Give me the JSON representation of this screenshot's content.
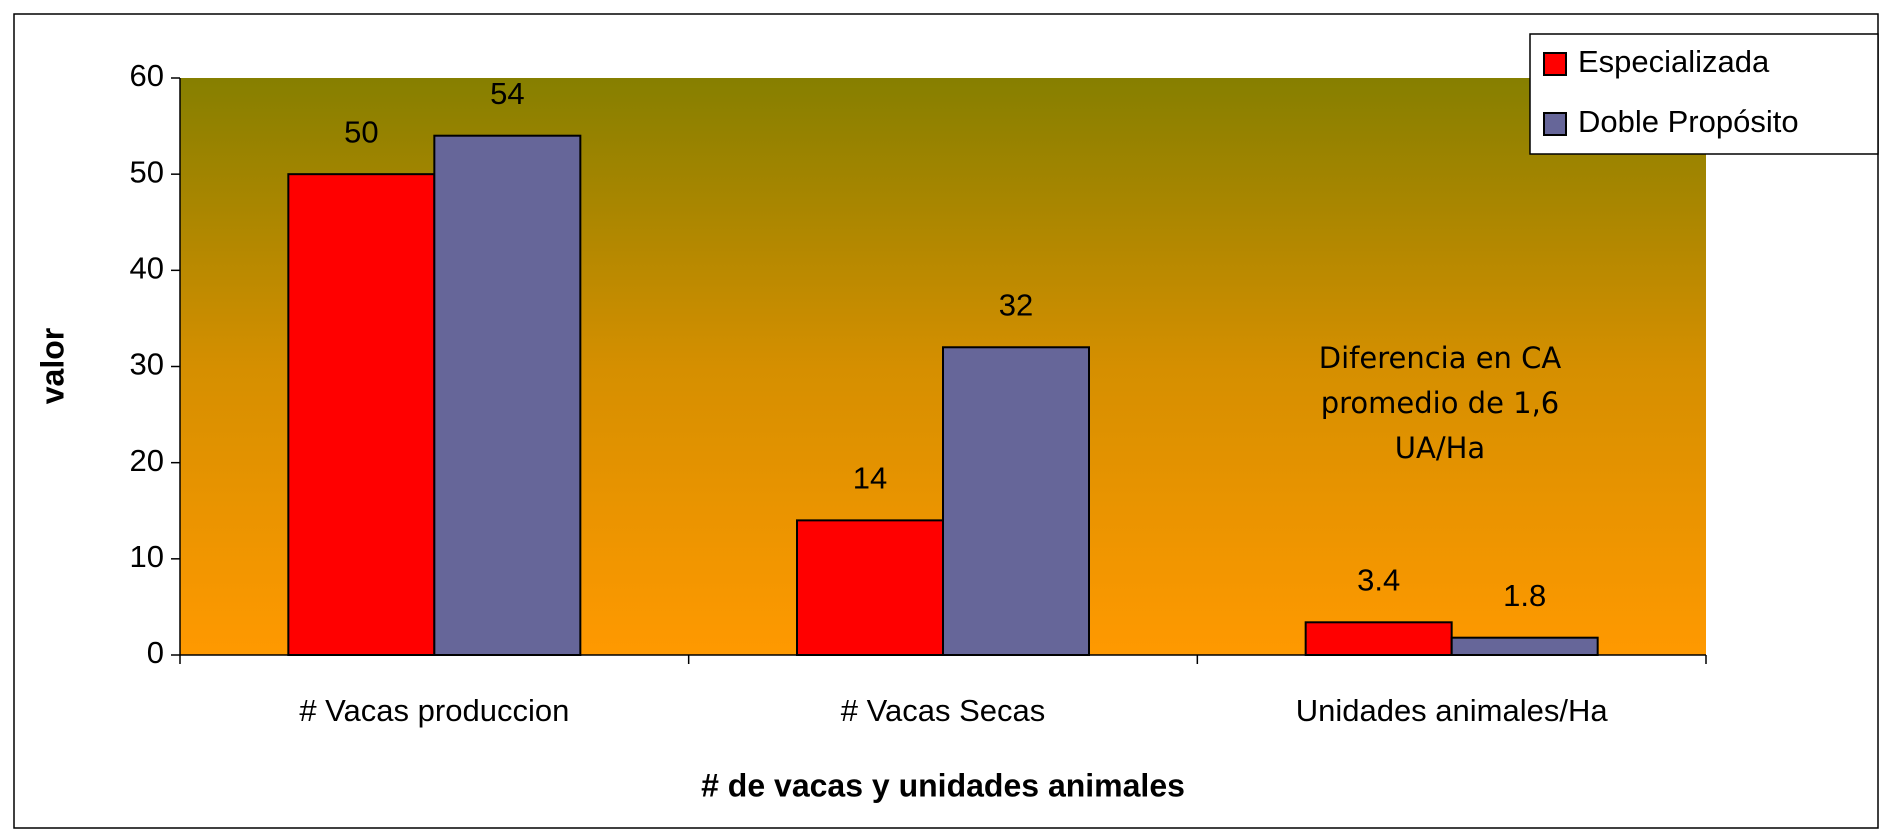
{
  "chart_data": {
    "type": "bar",
    "xlabel": "# de vacas y unidades animales",
    "ylabel": "valor",
    "categories": [
      "# Vacas produccion",
      "# Vacas Secas",
      "Unidades animales/Ha"
    ],
    "series": [
      {
        "name": "Especializada",
        "color": "#ff0000",
        "values": [
          50,
          14,
          3.4
        ]
      },
      {
        "name": "Doble Propósito",
        "color": "#666699",
        "values": [
          54,
          32,
          1.8
        ]
      }
    ],
    "ylim": [
      0,
      60
    ],
    "yticks": [
      0,
      10,
      20,
      30,
      40,
      50,
      60
    ],
    "annotation": [
      "Diferencia en CA",
      "promedio de 1,6",
      "UA/Ha"
    ],
    "legend": "upper right"
  }
}
